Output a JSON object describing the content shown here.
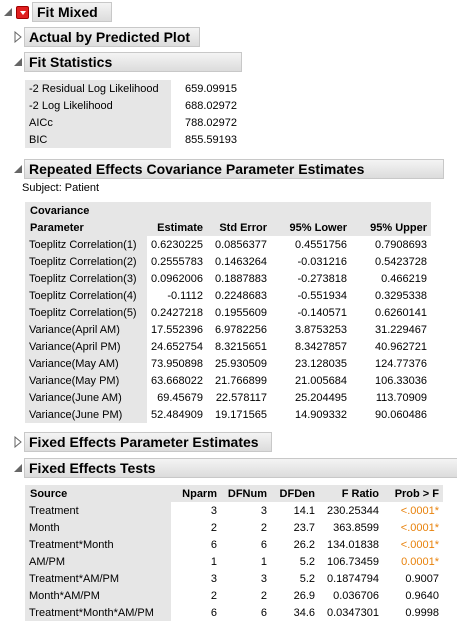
{
  "report": {
    "title": "Fit Mixed"
  },
  "actual_by_predicted": {
    "title": "Actual by Predicted Plot"
  },
  "fit_statistics": {
    "title": "Fit Statistics",
    "rows": [
      {
        "label": "-2 Residual Log Likelihood",
        "value": "659.09915"
      },
      {
        "label": "-2 Log Likelihood",
        "value": "688.02972"
      },
      {
        "label": "AICc",
        "value": "788.02972"
      },
      {
        "label": "BIC",
        "value": "855.59193"
      }
    ]
  },
  "repeated_effects": {
    "title": "Repeated Effects Covariance Parameter Estimates",
    "subject": "Subject: Patient",
    "headers": [
      "Covariance",
      "Parameter",
      "Estimate",
      "Std Error",
      "95% Lower",
      "95% Upper"
    ],
    "rows": [
      [
        "Toeplitz Correlation(1)",
        "0.6230225",
        "0.0856377",
        "0.4551756",
        "0.7908693"
      ],
      [
        "Toeplitz Correlation(2)",
        "0.2555783",
        "0.1463264",
        "-0.031216",
        "0.5423728"
      ],
      [
        "Toeplitz Correlation(3)",
        "0.0962006",
        "0.1887883",
        "-0.273818",
        "0.466219"
      ],
      [
        "Toeplitz Correlation(4)",
        "-0.1112",
        "0.2248683",
        "-0.551934",
        "0.3295338"
      ],
      [
        "Toeplitz Correlation(5)",
        "0.2427218",
        "0.1955609",
        "-0.140571",
        "0.6260141"
      ],
      [
        "Variance(April AM)",
        "17.552396",
        "6.9782256",
        "3.8753253",
        "31.229467"
      ],
      [
        "Variance(April PM)",
        "24.652754",
        "8.3215651",
        "8.3427857",
        "40.962721"
      ],
      [
        "Variance(May AM)",
        "73.950898",
        "25.930509",
        "23.128035",
        "124.77376"
      ],
      [
        "Variance(May PM)",
        "63.668022",
        "21.766899",
        "21.005684",
        "106.33036"
      ],
      [
        "Variance(June AM)",
        "69.45679",
        "22.578117",
        "25.204495",
        "113.70909"
      ],
      [
        "Variance(June PM)",
        "52.484909",
        "19.171565",
        "14.909332",
        "90.060486"
      ]
    ]
  },
  "fixed_effects_params": {
    "title": "Fixed Effects Parameter Estimates"
  },
  "fixed_effects_tests": {
    "title": "Fixed Effects Tests",
    "headers": [
      "Source",
      "Nparm",
      "DFNum",
      "DFDen",
      "F Ratio",
      "Prob > F"
    ],
    "rows": [
      [
        "Treatment",
        "3",
        "3",
        "14.1",
        "230.25344",
        "<.0001*"
      ],
      [
        "Month",
        "2",
        "2",
        "23.7",
        "363.8599",
        "<.0001*"
      ],
      [
        "Treatment*Month",
        "6",
        "6",
        "26.2",
        "134.01838",
        "<.0001*"
      ],
      [
        "AM/PM",
        "1",
        "1",
        "5.2",
        "106.73459",
        "0.0001*"
      ],
      [
        "Treatment*AM/PM",
        "3",
        "3",
        "5.2",
        "0.1874794",
        "0.9007"
      ],
      [
        "Month*AM/PM",
        "2",
        "2",
        "26.9",
        "0.036706",
        "0.9640"
      ],
      [
        "Treatment*Month*AM/PM",
        "6",
        "6",
        "34.6",
        "0.0347301",
        "0.9998"
      ]
    ],
    "significant_color": "#e8820c"
  }
}
